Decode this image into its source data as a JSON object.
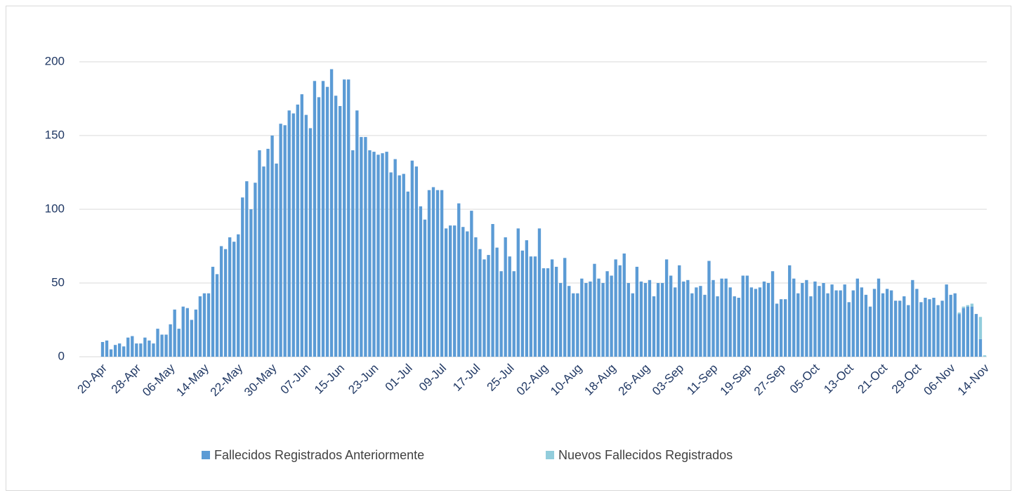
{
  "chart_data": {
    "type": "stacked-bar",
    "categories": [
      "20-Apr",
      null,
      null,
      null,
      null,
      null,
      null,
      null,
      "28-Apr",
      null,
      null,
      null,
      null,
      null,
      null,
      null,
      "06-May",
      null,
      null,
      null,
      null,
      null,
      null,
      null,
      "14-May",
      null,
      null,
      null,
      null,
      null,
      null,
      null,
      "22-May",
      null,
      null,
      null,
      null,
      null,
      null,
      null,
      "30-May",
      null,
      null,
      null,
      null,
      null,
      null,
      null,
      "07-Jun",
      null,
      null,
      null,
      null,
      null,
      null,
      null,
      "15-Jun",
      null,
      null,
      null,
      null,
      null,
      null,
      null,
      "23-Jun",
      null,
      null,
      null,
      null,
      null,
      null,
      null,
      "01-Jul",
      null,
      null,
      null,
      null,
      null,
      null,
      null,
      "09-Jul",
      null,
      null,
      null,
      null,
      null,
      null,
      null,
      "17-Jul",
      null,
      null,
      null,
      null,
      null,
      null,
      null,
      "25-Jul",
      null,
      null,
      null,
      null,
      null,
      null,
      null,
      "02-Aug",
      null,
      null,
      null,
      null,
      null,
      null,
      null,
      "10-Aug",
      null,
      null,
      null,
      null,
      null,
      null,
      null,
      "18-Aug",
      null,
      null,
      null,
      null,
      null,
      null,
      null,
      "26-Aug",
      null,
      null,
      null,
      null,
      null,
      null,
      null,
      "03-Sep",
      null,
      null,
      null,
      null,
      null,
      null,
      null,
      "11-Sep",
      null,
      null,
      null,
      null,
      null,
      null,
      null,
      "19-Sep",
      null,
      null,
      null,
      null,
      null,
      null,
      null,
      "27-Sep",
      null,
      null,
      null,
      null,
      null,
      null,
      null,
      "05-Oct",
      null,
      null,
      null,
      null,
      null,
      null,
      null,
      "13-Oct",
      null,
      null,
      null,
      null,
      null,
      null,
      null,
      "21-Oct",
      null,
      null,
      null,
      null,
      null,
      null,
      null,
      "29-Oct",
      null,
      null,
      null,
      null,
      null,
      null,
      null,
      "06-Nov",
      null,
      null,
      null,
      null,
      null,
      null,
      null,
      "14-Nov"
    ],
    "series": [
      {
        "name": "Fallecidos Registrados Anteriormente",
        "color": "#5b9bd5",
        "values": [
          10,
          11,
          5,
          8,
          9,
          7,
          13,
          14,
          9,
          9,
          13,
          11,
          9,
          19,
          15,
          15,
          22,
          32,
          19,
          34,
          33,
          25,
          32,
          41,
          43,
          43,
          61,
          56,
          75,
          73,
          81,
          78,
          83,
          108,
          119,
          100,
          118,
          140,
          129,
          141,
          150,
          131,
          158,
          157,
          167,
          165,
          171,
          178,
          164,
          155,
          187,
          176,
          187,
          183,
          195,
          177,
          170,
          188,
          188,
          140,
          167,
          149,
          149,
          140,
          139,
          137,
          138,
          139,
          125,
          134,
          123,
          124,
          112,
          133,
          129,
          102,
          93,
          113,
          115,
          113,
          113,
          87,
          89,
          89,
          104,
          88,
          85,
          99,
          81,
          73,
          66,
          69,
          90,
          74,
          58,
          81,
          68,
          58,
          87,
          72,
          79,
          68,
          68,
          87,
          60,
          60,
          66,
          61,
          50,
          67,
          48,
          43,
          43,
          53,
          50,
          51,
          63,
          53,
          50,
          58,
          55,
          66,
          62,
          70,
          50,
          43,
          61,
          51,
          50,
          52,
          41,
          50,
          50,
          66,
          55,
          47,
          62,
          51,
          52,
          43,
          47,
          48,
          42,
          65,
          52,
          41,
          53,
          53,
          47,
          41,
          40,
          55,
          55,
          47,
          46,
          47,
          51,
          50,
          58,
          36,
          39,
          39,
          62,
          53,
          43,
          50,
          52,
          41,
          51,
          48,
          50,
          43,
          49,
          45,
          45,
          49,
          37,
          45,
          53,
          47,
          42,
          34,
          46,
          53,
          43,
          46,
          45,
          38,
          38,
          41,
          35,
          52,
          46,
          37,
          40,
          39,
          40,
          35,
          38,
          49,
          42,
          43,
          29,
          33,
          34,
          34,
          29,
          12,
          0
        ]
      },
      {
        "name": "Nuevos Fallecidos Registrados",
        "color": "#92cddc",
        "values": [
          0,
          0,
          0,
          0,
          0,
          0,
          0,
          0,
          0,
          0,
          0,
          0,
          0,
          0,
          0,
          0,
          0,
          0,
          0,
          0,
          0,
          0,
          0,
          0,
          0,
          0,
          0,
          0,
          0,
          0,
          0,
          0,
          0,
          0,
          0,
          0,
          0,
          0,
          0,
          0,
          0,
          0,
          0,
          0,
          0,
          0,
          0,
          0,
          0,
          0,
          0,
          0,
          0,
          0,
          0,
          0,
          0,
          0,
          0,
          0,
          0,
          0,
          0,
          0,
          0,
          0,
          0,
          0,
          0,
          0,
          0,
          0,
          0,
          0,
          0,
          0,
          0,
          0,
          0,
          0,
          0,
          0,
          0,
          0,
          0,
          0,
          0,
          0,
          0,
          0,
          0,
          0,
          0,
          0,
          0,
          0,
          0,
          0,
          0,
          0,
          0,
          0,
          0,
          0,
          0,
          0,
          0,
          0,
          0,
          0,
          0,
          0,
          0,
          0,
          0,
          0,
          0,
          0,
          0,
          0,
          0,
          0,
          0,
          0,
          0,
          0,
          0,
          0,
          0,
          0,
          0,
          0,
          0,
          0,
          0,
          0,
          0,
          0,
          0,
          0,
          0,
          0,
          0,
          0,
          0,
          0,
          0,
          0,
          0,
          0,
          0,
          0,
          0,
          0,
          0,
          0,
          0,
          0,
          0,
          0,
          0,
          0,
          0,
          0,
          0,
          0,
          0,
          0,
          0,
          0,
          0,
          0,
          0,
          0,
          0,
          0,
          0,
          0,
          0,
          0,
          0,
          0,
          0,
          0,
          0,
          0,
          0,
          0,
          0,
          0,
          0,
          0,
          0,
          0,
          0,
          0,
          0,
          0,
          0,
          0,
          0,
          0,
          1,
          1,
          1,
          2,
          0,
          15,
          1
        ]
      }
    ],
    "ylim": [
      0,
      200
    ],
    "yticks": [
      0,
      50,
      100,
      150,
      200
    ],
    "grid": true,
    "legend": "bottom"
  }
}
